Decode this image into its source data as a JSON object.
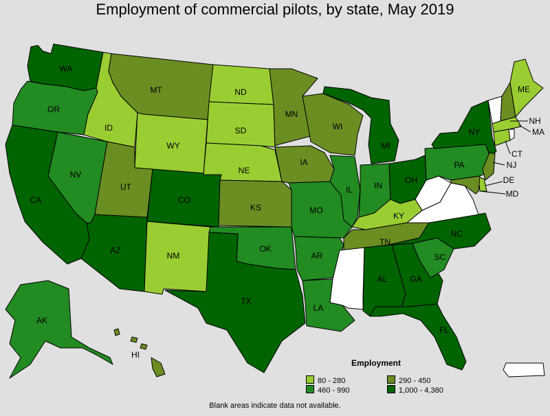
{
  "title": "Employment of commercial pilots, by state, May 2019",
  "legend": {
    "title": "Employment",
    "bins": [
      {
        "label": "80 - 280",
        "color": "#9acd32"
      },
      {
        "label": "290 - 450",
        "color": "#6b8e23"
      },
      {
        "label": "460 - 990",
        "color": "#228b22"
      },
      {
        "label": "1,000 - 4,380",
        "color": "#006400"
      }
    ]
  },
  "footnote": "Blank areas indicate data not available.",
  "no_data_color": "#ffffff",
  "states": {
    "WA": {
      "label": "WA",
      "bin": 3
    },
    "OR": {
      "label": "OR",
      "bin": 2
    },
    "CA": {
      "label": "CA",
      "bin": 3
    },
    "NV": {
      "label": "NV",
      "bin": 2
    },
    "ID": {
      "label": "ID",
      "bin": 0
    },
    "MT": {
      "label": "MT",
      "bin": 1
    },
    "WY": {
      "label": "WY",
      "bin": 0
    },
    "UT": {
      "label": "UT",
      "bin": 1
    },
    "AZ": {
      "label": "AZ",
      "bin": 3
    },
    "CO": {
      "label": "CO",
      "bin": 3
    },
    "NM": {
      "label": "NM",
      "bin": 0
    },
    "ND": {
      "label": "ND",
      "bin": 0
    },
    "SD": {
      "label": "SD",
      "bin": 0
    },
    "NE": {
      "label": "NE",
      "bin": 0
    },
    "KS": {
      "label": "KS",
      "bin": 1
    },
    "OK": {
      "label": "OK",
      "bin": 2
    },
    "TX": {
      "label": "TX",
      "bin": 3
    },
    "MN": {
      "label": "MN",
      "bin": 1
    },
    "IA": {
      "label": "IA",
      "bin": 1
    },
    "MO": {
      "label": "MO",
      "bin": 2
    },
    "AR": {
      "label": "AR",
      "bin": 2
    },
    "LA": {
      "label": "LA",
      "bin": 2
    },
    "WI": {
      "label": "WI",
      "bin": 1
    },
    "IL": {
      "label": "IL",
      "bin": 2
    },
    "MI": {
      "label": "MI",
      "bin": 3
    },
    "IN": {
      "label": "IN",
      "bin": 2
    },
    "OH": {
      "label": "OH",
      "bin": 3
    },
    "KY": {
      "label": "KY",
      "bin": 0
    },
    "TN": {
      "label": "TN",
      "bin": 1
    },
    "MS": {
      "label": "",
      "bin": null
    },
    "AL": {
      "label": "AL",
      "bin": 3
    },
    "GA": {
      "label": "GA",
      "bin": 3
    },
    "FL": {
      "label": "FL",
      "bin": 3
    },
    "SC": {
      "label": "SC",
      "bin": 2
    },
    "NC": {
      "label": "NC",
      "bin": 3
    },
    "VA": {
      "label": "",
      "bin": null
    },
    "WV": {
      "label": "",
      "bin": null
    },
    "PA": {
      "label": "PA",
      "bin": 2
    },
    "NY": {
      "label": "NY",
      "bin": 3
    },
    "VT": {
      "label": "",
      "bin": null
    },
    "NH": {
      "label": "NH",
      "bin": 1
    },
    "ME": {
      "label": "ME",
      "bin": 0
    },
    "MA": {
      "label": "MA",
      "bin": 0
    },
    "RI": {
      "label": "",
      "bin": null
    },
    "CT": {
      "label": "CT",
      "bin": 0
    },
    "NJ": {
      "label": "NJ",
      "bin": 1
    },
    "DE": {
      "label": "DE",
      "bin": 0
    },
    "MD": {
      "label": "MD",
      "bin": 1
    },
    "AK": {
      "label": "AK",
      "bin": 2
    },
    "HI": {
      "label": "HI",
      "bin": 1
    },
    "PR": {
      "label": "",
      "bin": null
    }
  }
}
